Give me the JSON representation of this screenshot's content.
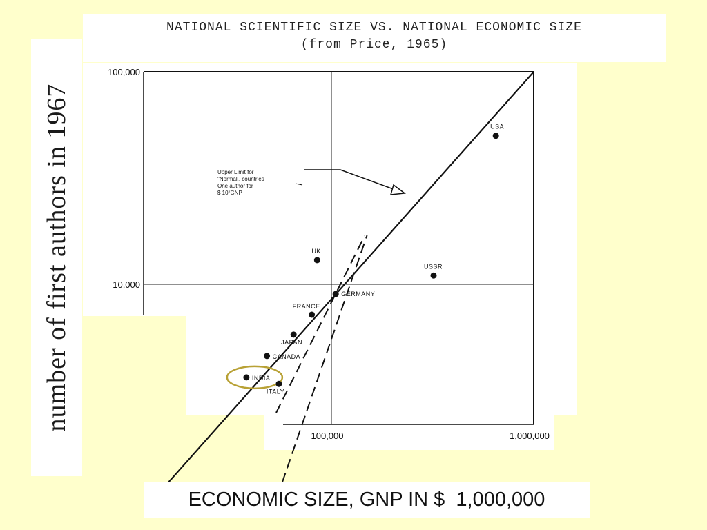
{
  "chart_data": {
    "type": "scatter",
    "title": "NATIONAL SCIENTIFIC SIZE VS. NATIONAL ECONOMIC SIZE",
    "subtitle": "(from Price, 1965)",
    "xlabel": "ECONOMIC SIZE, GNP IN $  1,000,000",
    "ylabel": "number of first authors in 1967",
    "x_scale": "log",
    "y_scale": "log",
    "xlim": [
      20000,
      1000000
    ],
    "ylim": [
      1000,
      100000
    ],
    "x_tick_labels": [
      "100,000",
      "1,000,000"
    ],
    "y_tick_labels": [
      "100,000",
      "10,000"
    ],
    "x_ticks": [
      100000,
      1000000
    ],
    "y_ticks": [
      100000,
      10000
    ],
    "grid": "lines at x=100,000 and y=10,000",
    "points": [
      {
        "label": "USA",
        "x": 650000,
        "y": 50000
      },
      {
        "label": "USSR",
        "x": 320000,
        "y": 11000
      },
      {
        "label": "UK",
        "x": 85000,
        "y": 13000
      },
      {
        "label": "GERMANY",
        "x": 105000,
        "y": 9000
      },
      {
        "label": "FRANCE",
        "x": 80000,
        "y": 7200
      },
      {
        "label": "JAPAN",
        "x": 65000,
        "y": 5800
      },
      {
        "label": "CANADA",
        "x": 48000,
        "y": 4600
      },
      {
        "label": "INDIA",
        "x": 38000,
        "y": 3650
      },
      {
        "label": "ITALY",
        "x": 55000,
        "y": 3400
      }
    ],
    "highlighted_point": "INDIA",
    "annotation": {
      "lines": [
        "Upper Limit for",
        "\"Normal,, countries",
        "One author for",
        "$ 10⁷GNP"
      ]
    },
    "reference_lines": [
      {
        "style": "solid",
        "from": [
          13500,
          1000
        ],
        "to": [
          1000000,
          100000
        ]
      },
      {
        "style": "dashed",
        "from": [
          54000,
          1000
        ],
        "to": [
          150000,
          17000
        ]
      }
    ]
  }
}
